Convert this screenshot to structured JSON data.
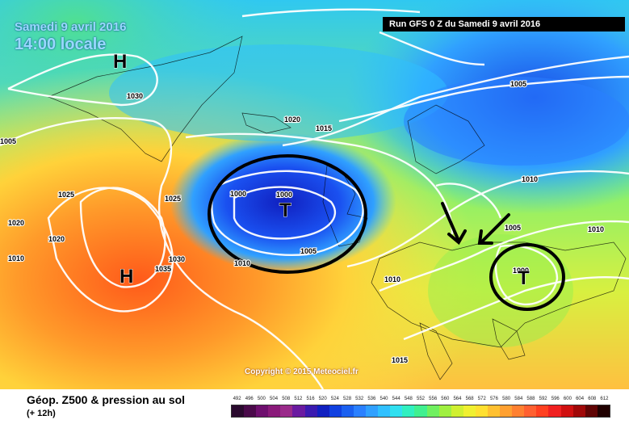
{
  "header": {
    "date": "Samedi 9 avril 2016",
    "time": "14:00 locale",
    "run": "Run GFS 0 Z du Samedi 9 avril 2016"
  },
  "copyright": "Copyright © 2015 Meteociel.fr",
  "legend": {
    "title": "Géop. Z500 & pression au sol",
    "subtitle": "(+ 12h)",
    "scale_values": [
      "492",
      "496",
      "500",
      "504",
      "508",
      "512",
      "516",
      "520",
      "524",
      "528",
      "532",
      "536",
      "540",
      "544",
      "548",
      "552",
      "556",
      "560",
      "564",
      "568",
      "572",
      "576",
      "580",
      "584",
      "588",
      "592",
      "596",
      "600",
      "604",
      "608",
      "612"
    ],
    "scale_colors": [
      "#2a0a2e",
      "#4a0a4a",
      "#6e0f6e",
      "#8a1a7a",
      "#9a2a8a",
      "#6a1aa0",
      "#3a1ab0",
      "#1020c0",
      "#1040e0",
      "#1a60f0",
      "#2a80ff",
      "#30a0ff",
      "#30c0ff",
      "#30e0f0",
      "#30f0c0",
      "#40f090",
      "#70f060",
      "#a0f040",
      "#d0f030",
      "#f0f030",
      "#ffe030",
      "#ffc030",
      "#ffa030",
      "#ff8030",
      "#ff6030",
      "#ff4020",
      "#f02020",
      "#d01010",
      "#a00808",
      "#600404",
      "#200000"
    ]
  },
  "pressure_labels": [
    {
      "text": "1030"
    },
    {
      "text": "1020"
    },
    {
      "text": "1015"
    },
    {
      "text": "1005"
    },
    {
      "text": "1025"
    },
    {
      "text": "1025"
    },
    {
      "text": "1035"
    },
    {
      "text": "1030"
    },
    {
      "text": "1000"
    },
    {
      "text": "1000"
    },
    {
      "text": "1005"
    },
    {
      "text": "1010"
    },
    {
      "text": "1010"
    },
    {
      "text": "1005"
    },
    {
      "text": "1010"
    },
    {
      "text": "1000"
    },
    {
      "text": "1015"
    },
    {
      "text": "1005"
    },
    {
      "text": "1020"
    },
    {
      "text": "1020"
    },
    {
      "text": "1010"
    },
    {
      "text": "1010"
    }
  ],
  "systems": [
    {
      "symbol": "H"
    },
    {
      "symbol": "H"
    },
    {
      "symbol": "T"
    },
    {
      "symbol": "T"
    }
  ],
  "colors": {
    "low_circle": "#000000",
    "arrow": "#000000",
    "isobar": "#ffffff"
  }
}
